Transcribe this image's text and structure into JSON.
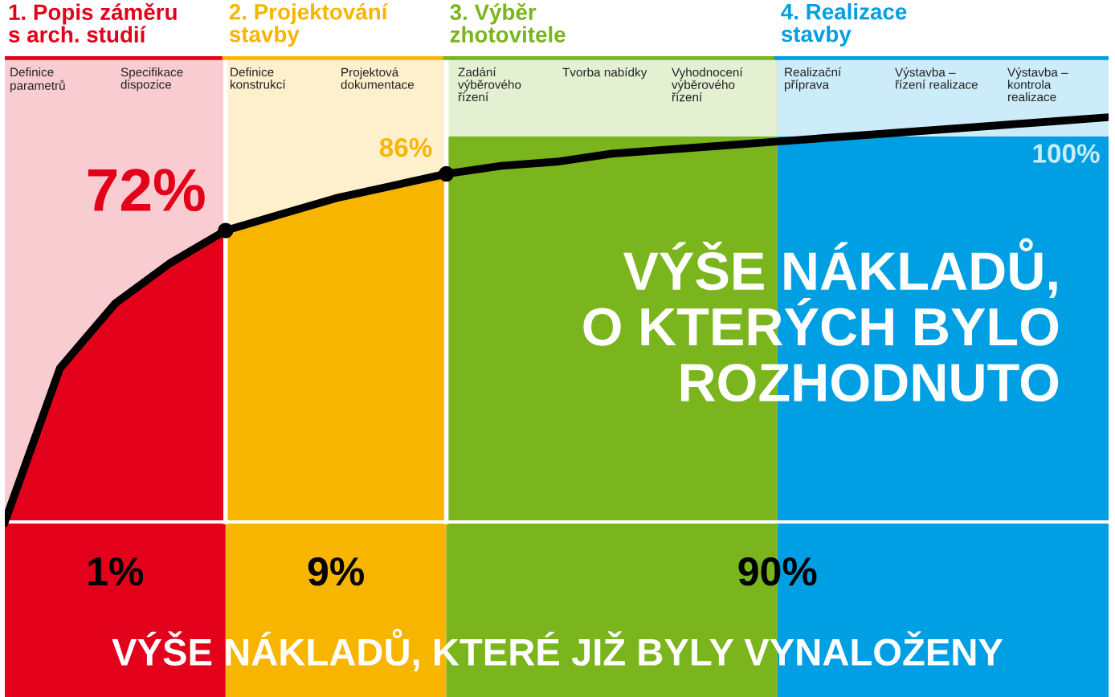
{
  "chart_data": {
    "type": "line",
    "categories": [
      null,
      null,
      null,
      null,
      null,
      null,
      null,
      null,
      null,
      null,
      null,
      null,
      null,
      null,
      null,
      null,
      null,
      null,
      null,
      null,
      null
    ],
    "series": [
      {
        "color": "#000000",
        "values": [
          0,
          38,
          54,
          64,
          72,
          76,
          80,
          83,
          86,
          88,
          89,
          91,
          92,
          93,
          94,
          95,
          96,
          97,
          98,
          99,
          100
        ],
        "value_labels": [
          null,
          null,
          null,
          null,
          "72%",
          null,
          null,
          null,
          "86%",
          null,
          null,
          null,
          null,
          null,
          null,
          null,
          null,
          null,
          null,
          null,
          "100%"
        ]
      }
    ],
    "annotations": [
      "1. Popis záměru\ns arch. studií",
      "2. Projektování\nstavby",
      "3. Výběr\nzhotovitele",
      "4. Realizace\nstavby",
      "Definice\nparametrů",
      "Specifikace\ndispozice",
      "Definice\nkonstrukcí",
      "Projektová\ndokumentace",
      "Zadání\nvýběrového\nřízení",
      "Tvorba nabídky",
      "Vyhodnocení\nvýběrového\nřízení",
      "Realizační\npříprava",
      "Výstavba –\nřízení realizace",
      "Výstavba –\nkontrola\nrealizace",
      "VÝŠE NÁKLADŮ,\nO KTERÝCH BYLO\nROZHODNUTO",
      "1%",
      "9%",
      "90%",
      "VÝŠE NÁKLADŮ, KTERÉ JIŽ BYLY VYNALOŽENY"
    ]
  }
}
